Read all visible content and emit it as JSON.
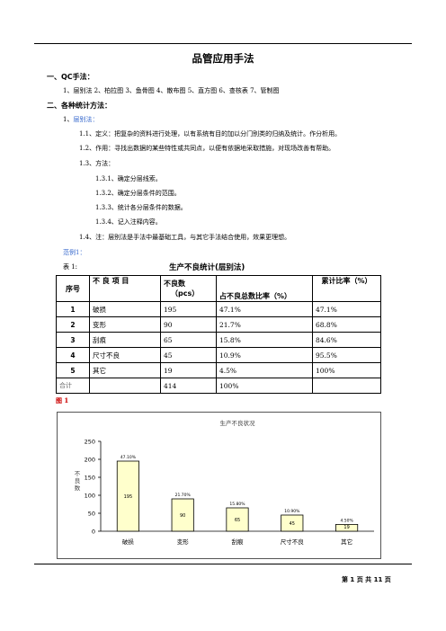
{
  "header_rule": true,
  "doc_title": "品管应用手法",
  "section1": {
    "heading": "一、QC手法：",
    "items_line": "1、层别法   2、柏拉图   3、鱼骨图   4、散布图   5、直方图     6、查核表    7、管制图"
  },
  "section2": {
    "heading": "二、各种统计方法：",
    "sub_number": "1、",
    "sub_title": "层别法：",
    "def": "1.1、定义：把复杂的资料进行处理，以有系统有目的加以分门别类的归纳及统计。作分析用。",
    "use": "1.2、作用：寻找出数据的某些特性或共同点，以便有依据地采取措施，对现场改善有帮助。",
    "method": "1.3、方法：",
    "steps": [
      "1.3.1、确定分层线索。",
      "1.3.2、确定分层条件的范围。",
      "1.3.3、统计各分层条件的数据。",
      "1.3.4、记入注释内容。"
    ],
    "note": "1.4、注：层别法是手法中最基础工具，与其它手法结合使用，效果更理想。",
    "example": "范例1："
  },
  "table": {
    "label": "表 1:",
    "title": "生产不良统计(层别法)",
    "headers": {
      "no": "序号",
      "item": "不 良 项 目",
      "count_line1": "不良数",
      "count_line2": "（pcs）",
      "ratio": "占不良总数比率（%）",
      "cum": "累计比率（%）"
    },
    "rows": [
      {
        "no": "1",
        "item": "破损",
        "count": "195",
        "ratio": "47.1%",
        "cum": "47.1%"
      },
      {
        "no": "2",
        "item": "变形",
        "count": "90",
        "ratio": "21.7%",
        "cum": "68.8%"
      },
      {
        "no": "3",
        "item": "刮痕",
        "count": "65",
        "ratio": "15.8%",
        "cum": "84.6%"
      },
      {
        "no": "4",
        "item": "尺寸不良",
        "count": "45",
        "ratio": "10.9%",
        "cum": "95.5%"
      },
      {
        "no": "5",
        "item": "其它",
        "count": "19",
        "ratio": "4.5%",
        "cum": "100%"
      }
    ],
    "total": {
      "label": "合计",
      "count": "414",
      "ratio": "100%",
      "cum": ""
    }
  },
  "figure_label": "图 1",
  "chart_data": {
    "type": "bar",
    "title": "生产不良状况",
    "ylabel": "不良数",
    "xlabel": "",
    "categories": [
      "破损",
      "变形",
      "刮痕",
      "尺寸不良",
      "其它"
    ],
    "values": [
      195,
      90,
      65,
      45,
      19
    ],
    "percent_labels": [
      "47.10%",
      "21.70%",
      "15.80%",
      "10.90%",
      "4.50%"
    ],
    "ylim": [
      0,
      250
    ],
    "yticks": [
      0,
      50,
      100,
      150,
      200,
      250
    ],
    "bar_color": "#ffffcc",
    "grid": false
  },
  "footer": {
    "page_text": "第 1 页 共 11 页"
  }
}
